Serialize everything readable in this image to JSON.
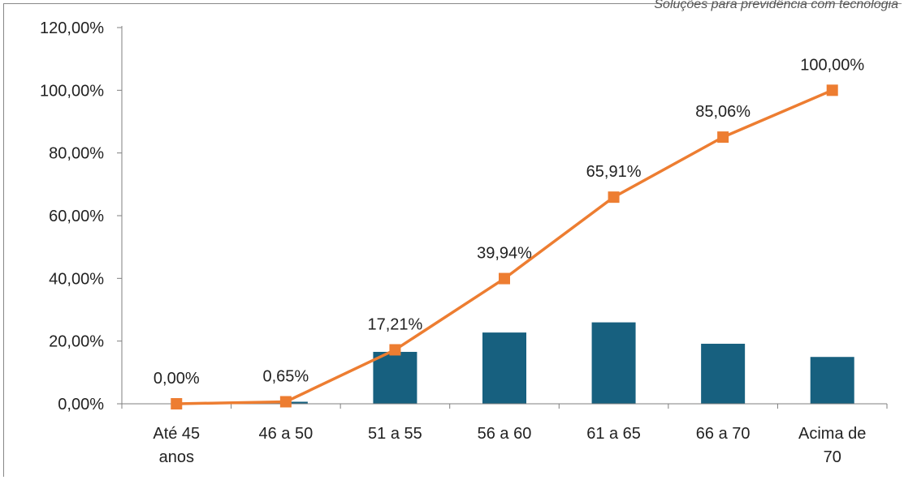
{
  "header": {
    "watermark": "Soluções para previdência com tecnologia"
  },
  "colors": {
    "bar": "#17607F",
    "line": "#ED7D31",
    "axis": "#7F7F7F",
    "text": "#222222"
  },
  "chart_data": {
    "type": "bar",
    "categories": [
      [
        "Até 45",
        "anos"
      ],
      [
        "46 a 50"
      ],
      [
        "51 a 55"
      ],
      [
        "56 a 60"
      ],
      [
        "61 a 65"
      ],
      [
        "66 a 70"
      ],
      [
        "Acima de",
        "70"
      ]
    ],
    "y_ticks": [
      "0,00%",
      "20,00%",
      "40,00%",
      "60,00%",
      "80,00%",
      "100,00%",
      "120,00%"
    ],
    "ylim": [
      0,
      120
    ],
    "grid": false,
    "series": [
      {
        "type": "bar",
        "values": [
          0.0,
          0.65,
          16.56,
          22.73,
          25.97,
          19.15,
          14.94
        ]
      },
      {
        "type": "line",
        "values": [
          0.0,
          0.65,
          17.21,
          39.94,
          65.91,
          85.06,
          100.0
        ],
        "labels": [
          "0,00%",
          "0,65%",
          "17,21%",
          "39,94%",
          "65,91%",
          "85,06%",
          "100,00%"
        ]
      }
    ]
  }
}
